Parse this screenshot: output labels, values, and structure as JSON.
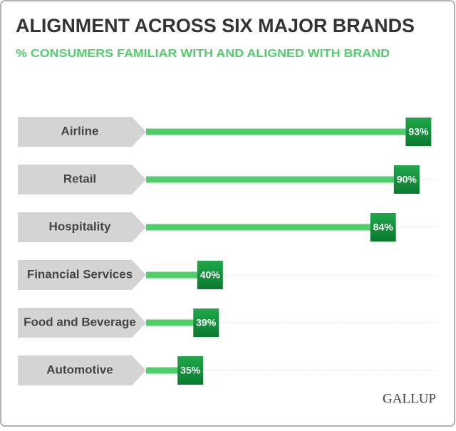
{
  "chart_data": {
    "type": "bar",
    "orientation": "horizontal",
    "title": "ALIGNMENT ACROSS SIX MAJOR BRANDS",
    "subtitle": "% CONSUMERS FAMILIAR WITH AND ALIGNED WITH BRAND",
    "categories": [
      "Airline",
      "Retail",
      "Hospitality",
      "Financial Services",
      "Food and Beverage",
      "Automotive"
    ],
    "values": [
      93,
      90,
      84,
      40,
      39,
      35
    ],
    "value_labels": [
      "93%",
      "90%",
      "84%",
      "40%",
      "39%",
      "35%"
    ],
    "color": "#4fcf6a",
    "source": "GALLUP"
  }
}
